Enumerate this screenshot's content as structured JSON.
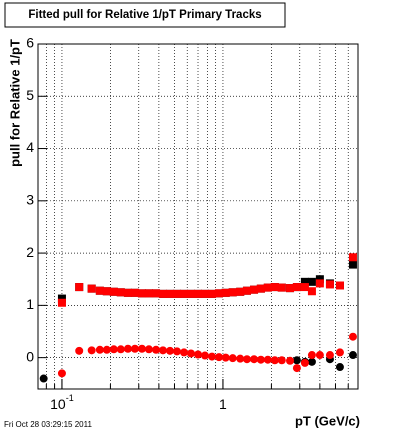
{
  "chart_data": {
    "type": "scatter",
    "title": "Fitted pull for Relative 1/pT  Primary Tracks",
    "ylabel": "pull for Relative 1/pT",
    "xlabel": "pT (GeV/c)",
    "footer": "Fri Oct 28 03:29:15 2011",
    "xscale": "log",
    "xlim": [
      0.071,
      6.9
    ],
    "ylim": [
      -0.6,
      6
    ],
    "xticks": [
      {
        "value": 0.1,
        "label": "10",
        "exponent": "-1"
      },
      1
    ],
    "xgrid_lines": [
      0.08,
      0.09,
      0.1,
      0.2,
      0.3,
      0.4,
      0.5,
      0.6,
      0.7,
      0.8,
      0.9,
      1,
      2,
      3,
      4,
      5,
      6
    ],
    "yticks": [
      0,
      1,
      2,
      3,
      4,
      5,
      6
    ],
    "grid": true,
    "x": [
      0.1,
      0.128,
      0.153,
      0.172,
      0.19,
      0.21,
      0.232,
      0.257,
      0.284,
      0.314,
      0.347,
      0.384,
      0.424,
      0.469,
      0.518,
      0.573,
      0.633,
      0.7,
      0.773,
      0.855,
      0.945,
      1.04,
      1.15,
      1.28,
      1.41,
      1.56,
      1.72,
      1.9,
      2.1,
      2.32,
      2.61,
      2.88,
      3.23,
      3.57,
      4.0,
      4.62,
      5.33,
      6.42
    ],
    "series": [
      {
        "color": "#000000",
        "marker": "square",
        "values": [
          1.13,
          1.35,
          1.32,
          1.28,
          1.27,
          1.26,
          1.25,
          1.24,
          1.24,
          1.23,
          1.23,
          1.23,
          1.22,
          1.22,
          1.22,
          1.22,
          1.22,
          1.22,
          1.22,
          1.22,
          1.23,
          1.24,
          1.25,
          1.26,
          1.28,
          1.3,
          1.32,
          1.34,
          1.35,
          1.34,
          1.33,
          1.35,
          1.45,
          1.45,
          1.5,
          1.42,
          1.38,
          1.78
        ]
      },
      {
        "color": "#ff0000",
        "marker": "square",
        "values": [
          1.05,
          1.35,
          1.32,
          1.28,
          1.27,
          1.26,
          1.25,
          1.24,
          1.24,
          1.23,
          1.23,
          1.23,
          1.22,
          1.22,
          1.22,
          1.22,
          1.22,
          1.22,
          1.22,
          1.22,
          1.23,
          1.24,
          1.25,
          1.26,
          1.28,
          1.3,
          1.32,
          1.34,
          1.35,
          1.34,
          1.33,
          1.35,
          1.35,
          1.27,
          1.42,
          1.4,
          1.38,
          1.92
        ]
      },
      {
        "color": "#000000",
        "marker": "circle",
        "x": [
          0.077,
          2.88,
          3.23,
          3.57,
          4.62,
          5.33,
          6.42
        ],
        "values": [
          -0.4,
          -0.05,
          -0.08,
          -0.08,
          -0.03,
          -0.18,
          0.05
        ]
      },
      {
        "color": "#ff0000",
        "marker": "circle",
        "values": [
          -0.3,
          0.13,
          0.14,
          0.15,
          0.15,
          0.16,
          0.16,
          0.17,
          0.17,
          0.17,
          0.16,
          0.15,
          0.14,
          0.13,
          0.12,
          0.1,
          0.08,
          0.06,
          0.04,
          0.02,
          0.01,
          0,
          -0.01,
          -0.02,
          -0.03,
          -0.03,
          -0.04,
          -0.04,
          -0.05,
          -0.05,
          -0.06,
          -0.2,
          -0.1,
          0.05,
          0.05,
          0.05,
          0.1,
          0.4
        ]
      }
    ]
  }
}
